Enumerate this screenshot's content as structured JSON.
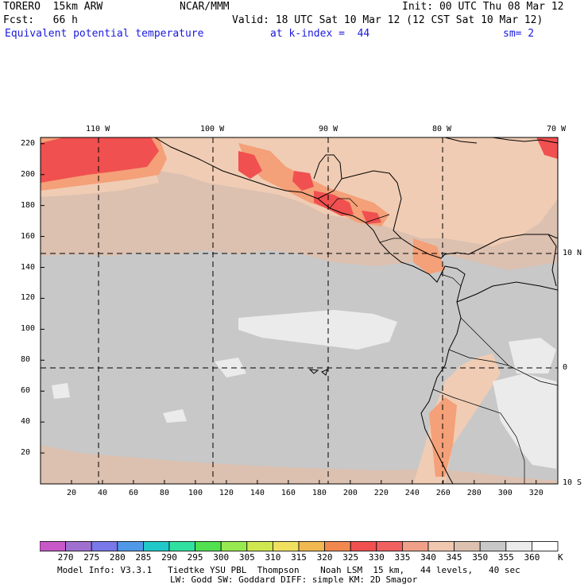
{
  "header": {
    "model": "TORERO  15km ARW",
    "org": "NCAR/MMM",
    "init": "Init: 00 UTC Thu 08 Mar 12",
    "fcst": "Fcst:   66 h",
    "valid": "Valid: 18 UTC Sat 10 Mar 12 (12 CST Sat 10 Mar 12)",
    "field": "Equivalent potential temperature",
    "level": "at k-index =  44",
    "smooth": "sm= 2"
  },
  "map": {
    "lon_labels": [
      "110 W",
      "100 W",
      "90 W",
      "80 W",
      "70 W"
    ],
    "lat_labels": [
      "10 N",
      "0",
      "10 S"
    ],
    "y_ticks": [
      "220",
      "200",
      "180",
      "160",
      "140",
      "120",
      "100",
      "80",
      "60",
      "40",
      "20"
    ],
    "x_ticks": [
      "20",
      "40",
      "60",
      "80",
      "100",
      "120",
      "140",
      "160",
      "180",
      "200",
      "220",
      "240",
      "260",
      "280",
      "300",
      "320"
    ],
    "grid_extent": {
      "x": [
        0,
        334
      ],
      "y": [
        0,
        224
      ]
    },
    "colors": {
      "bg_gray": "#c8c8c8",
      "tan": "#dcc0b0",
      "light_tan": "#f0ccb4",
      "salmon": "#f4a078",
      "red": "#f05050",
      "white_patch": "#ebebeb"
    }
  },
  "colorbar": {
    "labels": [
      "270",
      "275",
      "280",
      "285",
      "290",
      "295",
      "300",
      "305",
      "310",
      "315",
      "320",
      "325",
      "330",
      "335",
      "340",
      "345",
      "350",
      "355",
      "360"
    ],
    "unit": "K",
    "colors": [
      "#c858c8",
      "#a070d0",
      "#7878e8",
      "#5098e8",
      "#20c8c8",
      "#30e0a0",
      "#50e050",
      "#98e850",
      "#d0e850",
      "#f0e060",
      "#f0b850",
      "#f08850",
      "#f05050",
      "#f06060",
      "#f0a088",
      "#f0c8b0",
      "#dcc0b0",
      "#c8c8c8",
      "#ebebeb",
      "#ffffff"
    ]
  },
  "footer": {
    "line1": "Model Info: V3.3.1   Tiedtke YSU PBL  Thompson    Noah LSM  15 km,   44 levels,   40 sec",
    "line2": "LW: Godd SW: Goddard DIFF: simple KM: 2D Smagor"
  }
}
